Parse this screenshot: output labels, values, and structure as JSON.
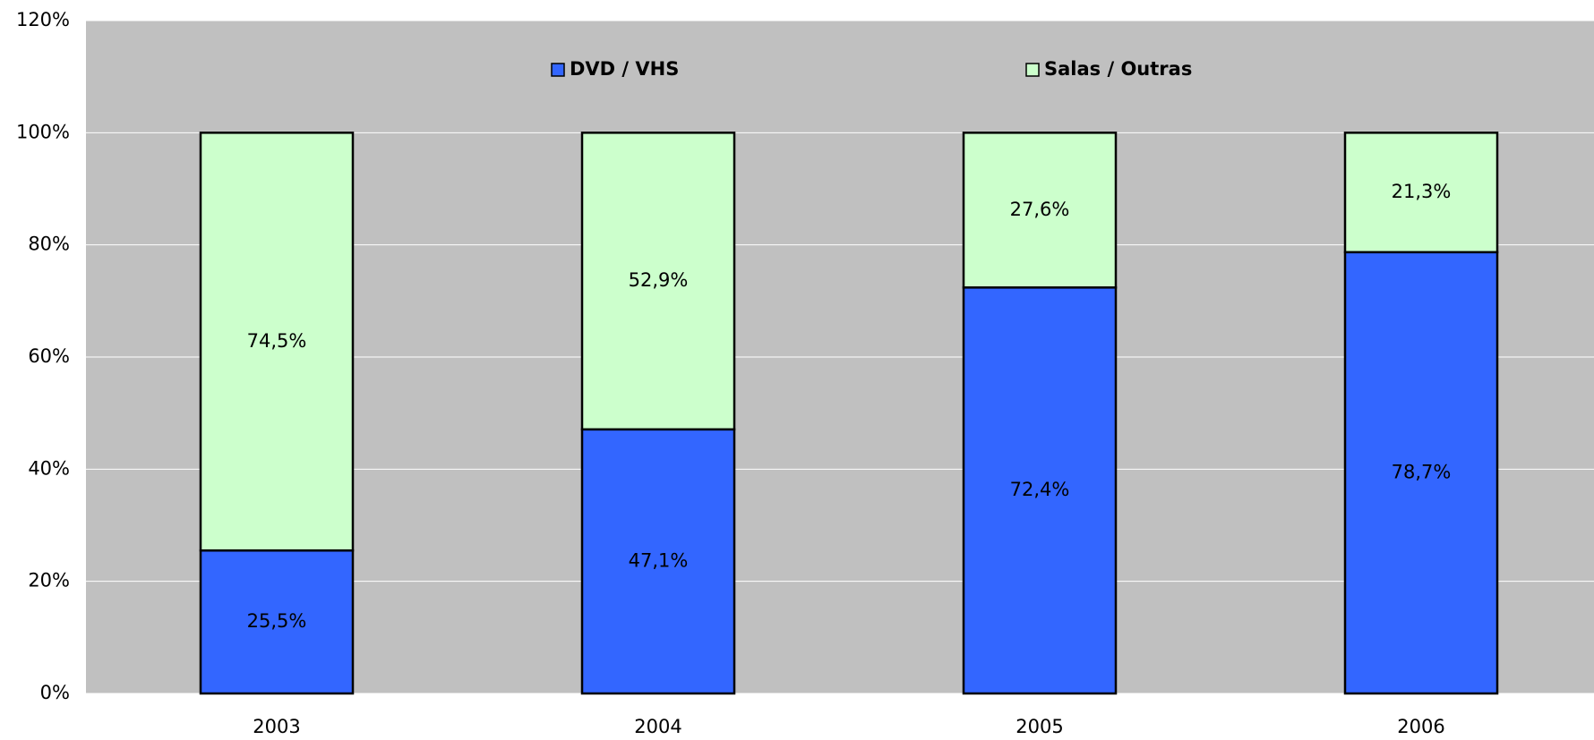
{
  "chart_data": {
    "type": "stacked_bar",
    "categories": [
      "2003",
      "2004",
      "2005",
      "2006"
    ],
    "series": [
      {
        "name": "DVD / VHS",
        "color": "#3366ff",
        "values": [
          25.5,
          47.1,
          72.4,
          78.7
        ],
        "value_labels": [
          "25,5%",
          "47,1%",
          "72,4%",
          "78,7%"
        ]
      },
      {
        "name": "Salas / Outras",
        "color": "#ccffcc",
        "values": [
          74.5,
          52.9,
          27.6,
          21.3
        ],
        "value_labels": [
          "74,5%",
          "52,9%",
          "27,6%",
          "21,3%"
        ]
      }
    ],
    "ylim": [
      0,
      120
    ],
    "yticks": [
      {
        "value": 0,
        "label": "0%"
      },
      {
        "value": 20,
        "label": "20%"
      },
      {
        "value": 40,
        "label": "40%"
      },
      {
        "value": 60,
        "label": "60%"
      },
      {
        "value": 80,
        "label": "80%"
      },
      {
        "value": 100,
        "label": "100%"
      },
      {
        "value": 120,
        "label": "120%"
      }
    ],
    "grid": true,
    "legend": "top"
  }
}
